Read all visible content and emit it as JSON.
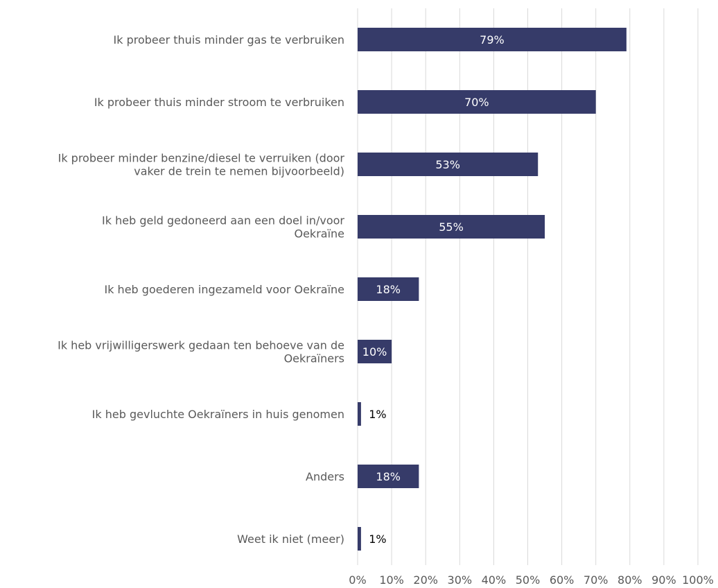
{
  "chart_data": {
    "type": "bar",
    "orientation": "horizontal",
    "categories": [
      [
        "Ik probeer thuis minder gas te verbruiken"
      ],
      [
        "Ik probeer thuis minder stroom te verbruiken"
      ],
      [
        "Ik probeer minder benzine/diesel te verruiken (door",
        "vaker de trein te nemen bijvoorbeeld)"
      ],
      [
        "Ik heb geld gedoneerd aan een doel in/voor",
        "Oekraïne"
      ],
      [
        "Ik heb goederen ingezameld voor Oekraïne"
      ],
      [
        "Ik heb vrijwilligerswerk gedaan ten behoeve van de",
        "Oekraïners"
      ],
      [
        "Ik heb gevluchte Oekraïners in huis genomen"
      ],
      [
        "Anders"
      ],
      [
        "Weet ik niet (meer)"
      ]
    ],
    "values": [
      79,
      70,
      53,
      55,
      18,
      10,
      1,
      18,
      1
    ],
    "data_labels": [
      "79%",
      "70%",
      "53%",
      "55%",
      "18%",
      "10%",
      "1%",
      "18%",
      "1%"
    ],
    "x_ticks": [
      "0%",
      "10%",
      "20%",
      "30%",
      "40%",
      "50%",
      "60%",
      "70%",
      "80%",
      "90%",
      "100%"
    ],
    "xlim": [
      0,
      100
    ],
    "grid": true,
    "legend": "none",
    "colors": {
      "bar": "#363b69",
      "label_inside": "#ffffff",
      "label_outside": "#000000",
      "grid": "#d9d9d9",
      "text": "#595959"
    }
  }
}
